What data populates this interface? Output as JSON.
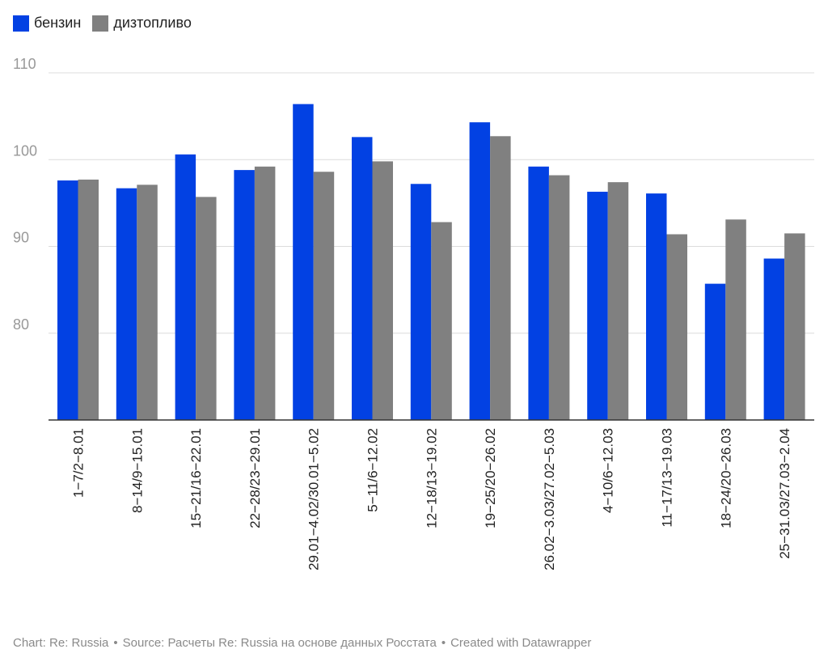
{
  "chart_data": {
    "type": "bar",
    "categories": [
      "1−7/2−8.01",
      "8−14/9−15.01",
      "15−21/16−22.01",
      "22−28/23−29.01",
      "29.01−4.02/30.01−5.02",
      "5−11/6−12.02",
      "12−18/13−19.02",
      "19−25/20−26.02",
      "26.02−3.03/27.02−5.03",
      "4−10/6−12.03",
      "11−17/13−19.03",
      "18−24/20−26.03",
      "25−31.03/27.03−2.04"
    ],
    "series": [
      {
        "name": "бензин",
        "color": "#0241e3",
        "values": [
          97.6,
          96.7,
          100.6,
          98.8,
          106.4,
          102.6,
          97.2,
          104.3,
          99.2,
          96.3,
          96.1,
          85.7,
          88.6
        ]
      },
      {
        "name": "дизтопливо",
        "color": "#808080",
        "values": [
          97.7,
          97.1,
          95.7,
          99.2,
          98.6,
          99.8,
          92.8,
          102.7,
          98.2,
          97.4,
          91.4,
          93.1,
          91.5
        ]
      }
    ],
    "yticks": [
      "110",
      "100",
      "90",
      "80"
    ],
    "ylim": [
      70,
      110
    ],
    "grid": true,
    "legend": "top-left"
  },
  "footer": {
    "chart": "Chart: Re: Russia",
    "source": "Source: Расчеты Re: Russia на основе данных Росстата",
    "created": "Created with Datawrapper",
    "separator": "•"
  }
}
